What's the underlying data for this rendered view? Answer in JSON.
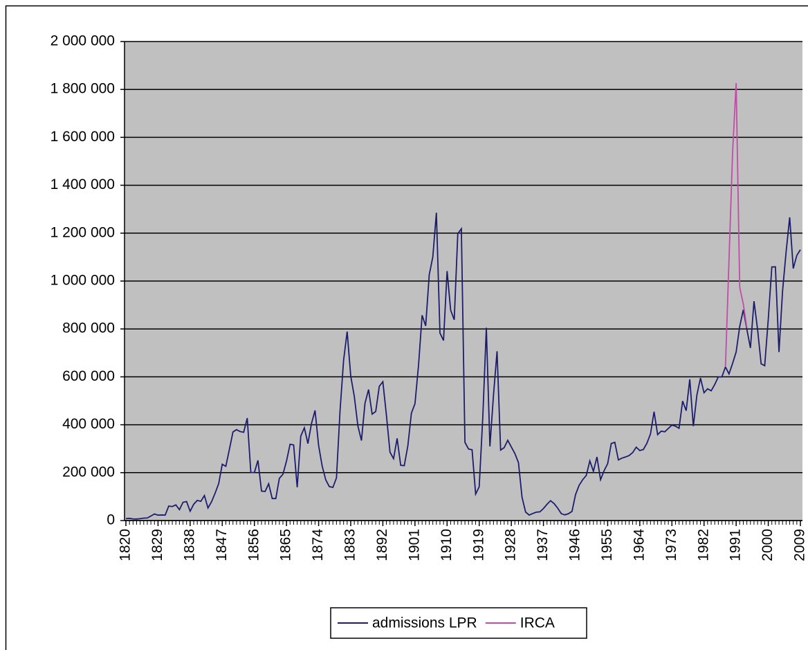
{
  "chart_data": {
    "type": "line",
    "x": [
      1820,
      1821,
      1822,
      1823,
      1824,
      1825,
      1826,
      1827,
      1828,
      1829,
      1830,
      1831,
      1832,
      1833,
      1834,
      1835,
      1836,
      1837,
      1838,
      1839,
      1840,
      1841,
      1842,
      1843,
      1844,
      1845,
      1846,
      1847,
      1848,
      1849,
      1850,
      1851,
      1852,
      1853,
      1854,
      1855,
      1856,
      1857,
      1858,
      1859,
      1860,
      1861,
      1862,
      1863,
      1864,
      1865,
      1866,
      1867,
      1868,
      1869,
      1870,
      1871,
      1872,
      1873,
      1874,
      1875,
      1876,
      1877,
      1878,
      1879,
      1880,
      1881,
      1882,
      1883,
      1884,
      1885,
      1886,
      1887,
      1888,
      1889,
      1890,
      1891,
      1892,
      1893,
      1894,
      1895,
      1896,
      1897,
      1898,
      1899,
      1900,
      1901,
      1902,
      1903,
      1904,
      1905,
      1906,
      1907,
      1908,
      1909,
      1910,
      1911,
      1912,
      1913,
      1914,
      1915,
      1916,
      1917,
      1918,
      1919,
      1920,
      1921,
      1922,
      1923,
      1924,
      1925,
      1926,
      1927,
      1928,
      1929,
      1930,
      1931,
      1932,
      1933,
      1934,
      1935,
      1936,
      1937,
      1938,
      1939,
      1940,
      1941,
      1942,
      1943,
      1944,
      1945,
      1946,
      1947,
      1948,
      1949,
      1950,
      1951,
      1952,
      1953,
      1954,
      1955,
      1956,
      1957,
      1958,
      1959,
      1960,
      1961,
      1962,
      1963,
      1964,
      1965,
      1966,
      1967,
      1968,
      1969,
      1970,
      1971,
      1972,
      1973,
      1974,
      1975,
      1976,
      1977,
      1978,
      1979,
      1980,
      1981,
      1982,
      1983,
      1984,
      1985,
      1986,
      1987,
      1988,
      1989,
      1990,
      1991,
      1992,
      1993,
      1994,
      1995,
      1996,
      1997,
      1998,
      1999,
      2000,
      2001,
      2002,
      2003,
      2004,
      2005,
      2006,
      2007,
      2008,
      2009
    ],
    "series": [
      {
        "name": "admissions LPR",
        "color": "#1c1c6e",
        "values": [
          8385,
          9127,
          6911,
          6354,
          7912,
          10199,
          10837,
          18875,
          27382,
          22520,
          23322,
          22633,
          60482,
          58640,
          65365,
          45374,
          76242,
          79340,
          38914,
          68069,
          84066,
          80289,
          104565,
          52496,
          78615,
          114371,
          154416,
          234968,
          226527,
          297024,
          369980,
          379466,
          371603,
          368645,
          427833,
          200877,
          200436,
          251306,
          123126,
          121282,
          153640,
          91918,
          91985,
          176282,
          193418,
          248120,
          318568,
          315722,
          138840,
          352768,
          387203,
          321350,
          404806,
          459803,
          313339,
          227498,
          169986,
          141857,
          138469,
          177826,
          457257,
          669431,
          788992,
          603322,
          518592,
          395346,
          334203,
          490109,
          546889,
          444427,
          455302,
          560319,
          579663,
          439730,
          285631,
          258536,
          343267,
          230832,
          229299,
          311715,
          448572,
          487918,
          648743,
          857046,
          812870,
          1026499,
          1100735,
          1285349,
          782870,
          751786,
          1041570,
          878587,
          838172,
          1197892,
          1218480,
          326700,
          298826,
          295403,
          110618,
          141132,
          430001,
          805228,
          309556,
          522919,
          706896,
          294314,
          304488,
          335175,
          307255,
          279678,
          241700,
          97139,
          35576,
          23068,
          29470,
          34956,
          36329,
          50244,
          67895,
          82998,
          70756,
          51776,
          28781,
          23725,
          28551,
          38119,
          108721,
          147292,
          170570,
          188317,
          249187,
          205717,
          265520,
          170434,
          208177,
          237790,
          321625,
          326867,
          253265,
          260686,
          265398,
          271344,
          283763,
          306260,
          292248,
          296697,
          323040,
          361972,
          454448,
          358579,
          373326,
          370478,
          384685,
          398515,
          393919,
          385378,
          499093,
          458755,
          589810,
          394244,
          524295,
          595014,
          533624,
          550052,
          541811,
          568149,
          600027,
          599889,
          641346,
          612110,
          656111,
          704005,
          810635,
          880014,
          798394,
          720461,
          915900,
          798378,
          654451,
          646568,
          841002,
          1058902,
          1059356,
          703542,
          957883,
          1122257,
          1266129,
          1052415,
          1107126,
          1130818
        ]
      },
      {
        "name": "IRCA",
        "color": "#c04ca6",
        "values": [
          null,
          null,
          null,
          null,
          null,
          null,
          null,
          null,
          null,
          null,
          null,
          null,
          null,
          null,
          null,
          null,
          null,
          null,
          null,
          null,
          null,
          null,
          null,
          null,
          null,
          null,
          null,
          null,
          null,
          null,
          null,
          null,
          null,
          null,
          null,
          null,
          null,
          null,
          null,
          null,
          null,
          null,
          null,
          null,
          null,
          null,
          null,
          null,
          null,
          null,
          null,
          null,
          null,
          null,
          null,
          null,
          null,
          null,
          null,
          null,
          null,
          null,
          null,
          null,
          null,
          null,
          null,
          null,
          null,
          null,
          null,
          null,
          null,
          null,
          null,
          null,
          null,
          null,
          null,
          null,
          null,
          null,
          null,
          null,
          null,
          null,
          null,
          null,
          null,
          null,
          null,
          null,
          null,
          null,
          null,
          null,
          null,
          null,
          null,
          null,
          null,
          null,
          null,
          null,
          null,
          null,
          null,
          null,
          null,
          null,
          null,
          null,
          null,
          null,
          null,
          null,
          null,
          null,
          null,
          null,
          null,
          null,
          null,
          null,
          null,
          null,
          null,
          null,
          null,
          null,
          null,
          null,
          null,
          null,
          null,
          null,
          null,
          null,
          null,
          null,
          null,
          null,
          null,
          null,
          null,
          null,
          null,
          null,
          null,
          null,
          null,
          null,
          null,
          null,
          null,
          null,
          null,
          null,
          null,
          null,
          null,
          null,
          null,
          null,
          null,
          null,
          null,
          null,
          641346,
          1090172,
          1535872,
          1826595,
          973977,
          904292,
          804416,
          null,
          null,
          null,
          null,
          null,
          null,
          null,
          null,
          null,
          null,
          null,
          null,
          null,
          null,
          null
        ]
      }
    ],
    "xlim": [
      1820,
      2009
    ],
    "xticks": [
      1820,
      1829,
      1838,
      1847,
      1856,
      1865,
      1874,
      1883,
      1892,
      1901,
      1910,
      1919,
      1928,
      1937,
      1946,
      1955,
      1964,
      1973,
      1982,
      1991,
      2000,
      2009
    ],
    "ylim": [
      0,
      2000000
    ],
    "yticks": [
      0,
      {
        "value": 200000,
        "label": "200 000"
      },
      {
        "value": 400000,
        "label": "400 000"
      },
      {
        "value": 600000,
        "label": "600 000"
      },
      {
        "value": 800000,
        "label": "800 000"
      },
      {
        "value": 1000000,
        "label": "1 000 000"
      },
      {
        "value": 1200000,
        "label": "1 200 000"
      },
      {
        "value": 1400000,
        "label": "1 400 000"
      },
      {
        "value": 1600000,
        "label": "1 600 000"
      },
      {
        "value": 1800000,
        "label": "1 800 000"
      },
      {
        "value": 2000000,
        "label": "2 000 000"
      }
    ],
    "grid": true,
    "legend": "bottom"
  }
}
